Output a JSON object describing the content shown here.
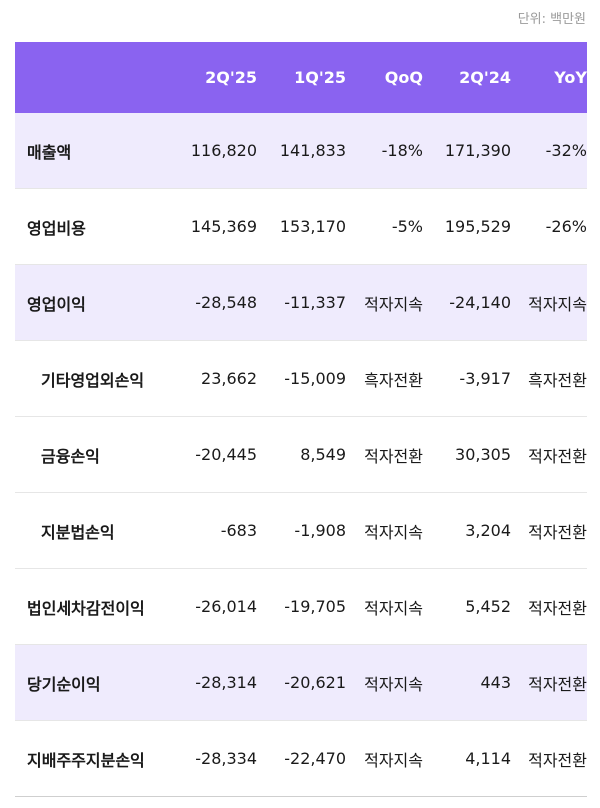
{
  "unit_note": "단위: 백만원",
  "headers": [
    "",
    "2Q'25",
    "1Q'25",
    "QoQ",
    "2Q'24",
    "YoY"
  ],
  "rows": [
    {
      "label": "매출액",
      "values": [
        "116,820",
        "141,833",
        "-18%",
        "171,390",
        "-32%"
      ],
      "highlight": true,
      "sub": false
    },
    {
      "label": "영업비용",
      "values": [
        "145,369",
        "153,170",
        "-5%",
        "195,529",
        "-26%"
      ],
      "highlight": false,
      "sub": false
    },
    {
      "label": "영업이익",
      "values": [
        "-28,548",
        "-11,337",
        "적자지속",
        "-24,140",
        "적자지속"
      ],
      "highlight": true,
      "sub": false
    },
    {
      "label": "기타영업외손익",
      "values": [
        "23,662",
        "-15,009",
        "흑자전환",
        "-3,917",
        "흑자전환"
      ],
      "highlight": false,
      "sub": true
    },
    {
      "label": "금융손익",
      "values": [
        "-20,445",
        "8,549",
        "적자전환",
        "30,305",
        "적자전환"
      ],
      "highlight": false,
      "sub": true
    },
    {
      "label": "지분법손익",
      "values": [
        "-683",
        "-1,908",
        "적자지속",
        "3,204",
        "적자전환"
      ],
      "highlight": false,
      "sub": true
    },
    {
      "label": "법인세차감전이익",
      "values": [
        "-26,014",
        "-19,705",
        "적자지속",
        "5,452",
        "적자전환"
      ],
      "highlight": false,
      "sub": false
    },
    {
      "label": "당기순이익",
      "values": [
        "-28,314",
        "-20,621",
        "적자지속",
        "443",
        "적자전환"
      ],
      "highlight": true,
      "sub": false
    },
    {
      "label": "지배주주지분손익",
      "values": [
        "-28,334",
        "-22,470",
        "적자지속",
        "4,114",
        "적자전환"
      ],
      "highlight": false,
      "sub": false
    }
  ],
  "colors": {
    "header_bg": "#8a63f0",
    "highlight_bg": "#efebfd"
  }
}
